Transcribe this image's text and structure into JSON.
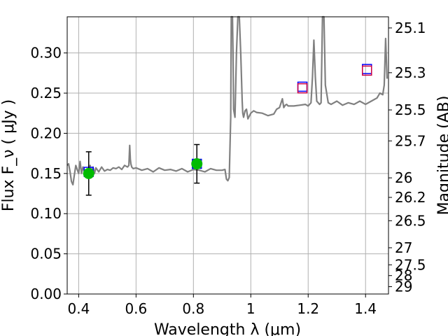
{
  "chart_data": {
    "type": "line",
    "xlabel": "Wavelength  λ (μm)",
    "ylabel": "Flux  F_ν  ( μJy )",
    "y2label": "Magnitude (AB)",
    "xlim": [
      0.36,
      1.48
    ],
    "ylim": [
      0,
      0.345
    ],
    "grid": true,
    "x_ticks": [
      0.4,
      0.6,
      0.8,
      1.0,
      1.2,
      1.4
    ],
    "x_tick_labels": [
      "0.4",
      "0.6",
      "0.8",
      "1",
      "1.2",
      "1.4"
    ],
    "y_ticks": [
      0.0,
      0.05,
      0.1,
      0.15,
      0.2,
      0.25,
      0.3
    ],
    "y_tick_labels": [
      "0.00",
      "0.05",
      "0.10",
      "0.15",
      "0.20",
      "0.25",
      "0.30"
    ],
    "y2_ticks": [
      25.1,
      25.3,
      25.5,
      25.7,
      26,
      26.2,
      26.5,
      27,
      27.5,
      28,
      29
    ],
    "y2_tick_labels": [
      "25.1",
      "25.3",
      "25.5",
      "25.7",
      "26",
      "26.2",
      "26.5",
      "27",
      "27.5",
      "28",
      "29"
    ],
    "series": [
      {
        "kind": "model-spectrum",
        "color": "#808080",
        "x": [
          0.36,
          0.365,
          0.37,
          0.375,
          0.38,
          0.385,
          0.39,
          0.395,
          0.4,
          0.405,
          0.41,
          0.415,
          0.42,
          0.425,
          0.43,
          0.435,
          0.44,
          0.445,
          0.45,
          0.455,
          0.46,
          0.47,
          0.48,
          0.49,
          0.5,
          0.51,
          0.52,
          0.53,
          0.54,
          0.55,
          0.56,
          0.57,
          0.575,
          0.578,
          0.58,
          0.582,
          0.585,
          0.59,
          0.6,
          0.62,
          0.64,
          0.66,
          0.68,
          0.7,
          0.72,
          0.74,
          0.76,
          0.78,
          0.8,
          0.82,
          0.84,
          0.86,
          0.88,
          0.9,
          0.91,
          0.915,
          0.92,
          0.925,
          0.93,
          0.932,
          0.934,
          0.936,
          0.938,
          0.94,
          0.945,
          0.95,
          0.955,
          0.96,
          0.965,
          0.97,
          0.972,
          0.975,
          0.98,
          0.985,
          0.99,
          1.0,
          1.01,
          1.02,
          1.04,
          1.06,
          1.08,
          1.09,
          1.1,
          1.11,
          1.115,
          1.12,
          1.125,
          1.13,
          1.15,
          1.17,
          1.19,
          1.2,
          1.21,
          1.215,
          1.22,
          1.225,
          1.23,
          1.24,
          1.245,
          1.25,
          1.255,
          1.26,
          1.27,
          1.28,
          1.3,
          1.32,
          1.34,
          1.36,
          1.38,
          1.4,
          1.42,
          1.44,
          1.45,
          1.46,
          1.465,
          1.47,
          1.475
        ],
        "y": [
          0.16,
          0.162,
          0.152,
          0.14,
          0.136,
          0.148,
          0.16,
          0.155,
          0.15,
          0.165,
          0.15,
          0.158,
          0.152,
          0.148,
          0.155,
          0.15,
          0.16,
          0.152,
          0.158,
          0.15,
          0.157,
          0.152,
          0.158,
          0.153,
          0.155,
          0.154,
          0.157,
          0.156,
          0.158,
          0.155,
          0.16,
          0.158,
          0.16,
          0.185,
          0.168,
          0.162,
          0.158,
          0.156,
          0.157,
          0.154,
          0.156,
          0.152,
          0.157,
          0.154,
          0.155,
          0.153,
          0.156,
          0.152,
          0.155,
          0.154,
          0.152,
          0.156,
          0.154,
          0.154,
          0.155,
          0.143,
          0.141,
          0.145,
          0.22,
          0.345,
          0.345,
          0.345,
          0.3,
          0.23,
          0.22,
          0.3,
          0.345,
          0.345,
          0.3,
          0.24,
          0.225,
          0.22,
          0.228,
          0.23,
          0.218,
          0.225,
          0.228,
          0.226,
          0.225,
          0.222,
          0.224,
          0.23,
          0.232,
          0.243,
          0.232,
          0.235,
          0.236,
          0.234,
          0.234,
          0.235,
          0.236,
          0.234,
          0.238,
          0.27,
          0.316,
          0.27,
          0.24,
          0.236,
          0.238,
          0.345,
          0.345,
          0.26,
          0.238,
          0.236,
          0.24,
          0.235,
          0.238,
          0.236,
          0.24,
          0.236,
          0.24,
          0.244,
          0.25,
          0.248,
          0.26,
          0.318,
          0.268
        ]
      },
      {
        "kind": "model-photometry",
        "marker": "open-square",
        "edge_color": "#0000ff",
        "x": [
          0.435,
          0.812,
          1.18,
          1.405
        ],
        "y": [
          0.152,
          0.162,
          0.258,
          0.28
        ]
      },
      {
        "kind": "observed-photometry",
        "marker": "open-square",
        "edge_color": "#cc0044",
        "x": [
          1.18,
          1.405
        ],
        "y": [
          0.256,
          0.278
        ]
      },
      {
        "kind": "observed-data",
        "marker": "filled-circle",
        "color": "#00bb00",
        "x": [
          0.435,
          0.812
        ],
        "y": [
          0.15,
          0.162
        ],
        "yerr": [
          0.027,
          0.024
        ]
      }
    ]
  }
}
